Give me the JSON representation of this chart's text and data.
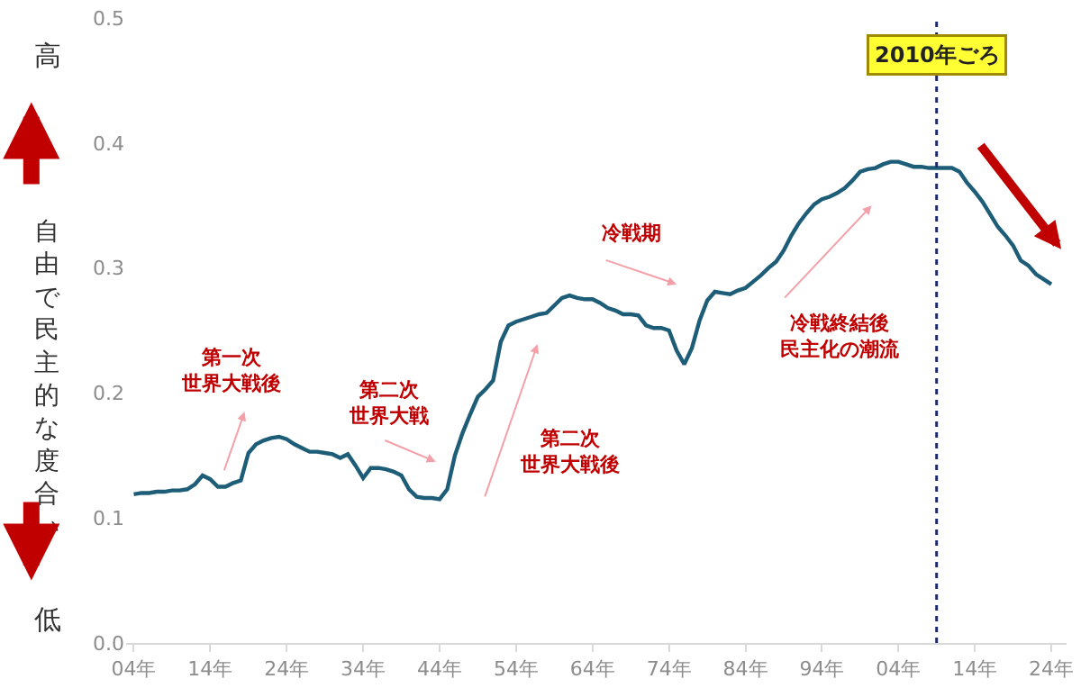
{
  "chart_data": {
    "type": "line",
    "ylabel": "自由で民主的な度合い",
    "line_style": "solid",
    "marker": "none",
    "categories": [
      "04年",
      null,
      null,
      null,
      null,
      null,
      null,
      null,
      null,
      null,
      "14年",
      null,
      null,
      null,
      null,
      null,
      null,
      null,
      null,
      null,
      "24年",
      null,
      null,
      null,
      null,
      null,
      null,
      null,
      null,
      null,
      "34年",
      null,
      null,
      null,
      null,
      null,
      null,
      null,
      null,
      null,
      "44年",
      null,
      null,
      null,
      null,
      null,
      null,
      null,
      null,
      null,
      "54年",
      null,
      null,
      null,
      null,
      null,
      null,
      null,
      null,
      null,
      "64年",
      null,
      null,
      null,
      null,
      null,
      null,
      null,
      null,
      null,
      "74年",
      null,
      null,
      null,
      null,
      null,
      null,
      null,
      null,
      null,
      "84年",
      null,
      null,
      null,
      null,
      null,
      null,
      null,
      null,
      null,
      "94年",
      null,
      null,
      null,
      null,
      null,
      null,
      null,
      null,
      null,
      "04年",
      null,
      null,
      null,
      null,
      null,
      null,
      null,
      null,
      null,
      "14年",
      null,
      null,
      null,
      null,
      null,
      null,
      null,
      null,
      null,
      "24年"
    ],
    "series": [
      {
        "color": "#1d5d78",
        "values": [
          0.119,
          0.12,
          0.12,
          0.121,
          0.121,
          0.122,
          0.122,
          0.123,
          0.127,
          0.134,
          0.131,
          0.125,
          0.125,
          0.128,
          0.13,
          0.152,
          0.159,
          0.162,
          0.164,
          0.165,
          0.163,
          0.159,
          0.156,
          0.153,
          0.153,
          0.152,
          0.151,
          0.148,
          0.151,
          0.142,
          0.132,
          0.14,
          0.14,
          0.139,
          0.137,
          0.134,
          0.123,
          0.117,
          0.116,
          0.116,
          0.115,
          0.123,
          0.15,
          0.168,
          0.183,
          0.197,
          0.203,
          0.21,
          0.241,
          0.254,
          0.257,
          0.259,
          0.261,
          0.263,
          0.264,
          0.27,
          0.276,
          0.278,
          0.276,
          0.275,
          0.275,
          0.272,
          0.268,
          0.266,
          0.263,
          0.263,
          0.262,
          0.254,
          0.252,
          0.252,
          0.25,
          0.234,
          0.223,
          0.236,
          0.258,
          0.274,
          0.281,
          0.28,
          0.279,
          0.282,
          0.284,
          0.289,
          0.294,
          0.3,
          0.305,
          0.314,
          0.326,
          0.336,
          0.344,
          0.351,
          0.355,
          0.357,
          0.36,
          0.364,
          0.37,
          0.377,
          0.379,
          0.38,
          0.383,
          0.385,
          0.385,
          0.383,
          0.381,
          0.381,
          0.38,
          0.38,
          0.38,
          0.38,
          0.377,
          0.368,
          0.361,
          0.353,
          0.343,
          0.333,
          0.326,
          0.318,
          0.306,
          0.302,
          0.295,
          0.291,
          0.287
        ]
      }
    ],
    "ylim": [
      0,
      0.5
    ],
    "yticks": [
      {
        "value": 0,
        "label": "0.0"
      },
      {
        "value": 0.1,
        "label": "0.1"
      },
      {
        "value": 0.2,
        "label": "0.2"
      },
      {
        "value": 0.3,
        "label": "0.3"
      },
      {
        "value": 0.4,
        "label": "0.4"
      },
      {
        "value": 0.5,
        "label": "0.5"
      }
    ],
    "annotations": [
      "2010年ごろ",
      "高",
      "低",
      "第一次世界大戦後",
      "第二次世界大戦",
      "第二次世界大戦後",
      "冷戦期",
      "冷戦終結後民主化の潮流"
    ]
  }
}
